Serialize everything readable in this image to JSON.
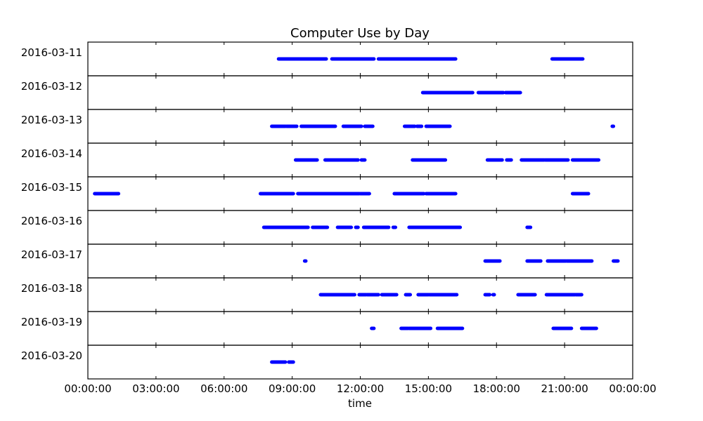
{
  "chart_data": {
    "type": "scatter",
    "title": "Computer Use by Day",
    "xlabel": "time",
    "x_range_hours": [
      0,
      24
    ],
    "x_ticks": [
      "00:00:00",
      "03:00:00",
      "06:00:00",
      "09:00:00",
      "12:00:00",
      "15:00:00",
      "18:00:00",
      "21:00:00",
      "00:00:00"
    ],
    "series_color": "#0000ff",
    "days": [
      {
        "label": "2016-03-11",
        "intervals": [
          [
            8.4,
            10.5
          ],
          [
            10.75,
            12.6
          ],
          [
            12.8,
            16.2
          ],
          [
            20.45,
            21.8
          ]
        ]
      },
      {
        "label": "2016-03-12",
        "intervals": [
          [
            14.75,
            16.95
          ],
          [
            17.2,
            18.3
          ],
          [
            18.4,
            19.05
          ]
        ]
      },
      {
        "label": "2016-03-13",
        "intervals": [
          [
            8.1,
            8.7
          ],
          [
            8.75,
            9.2
          ],
          [
            9.4,
            10.9
          ],
          [
            11.25,
            12.05
          ],
          [
            12.2,
            12.55
          ],
          [
            13.95,
            14.4
          ],
          [
            14.5,
            14.7
          ],
          [
            14.9,
            15.95
          ],
          [
            23.1,
            23.15
          ]
        ]
      },
      {
        "label": "2016-03-14",
        "intervals": [
          [
            9.15,
            10.1
          ],
          [
            10.45,
            11.9
          ],
          [
            12.05,
            12.2
          ],
          [
            14.3,
            15.75
          ],
          [
            17.6,
            18.25
          ],
          [
            18.45,
            18.65
          ],
          [
            19.1,
            20.1
          ],
          [
            20.15,
            21.15
          ],
          [
            21.35,
            22.5
          ]
        ]
      },
      {
        "label": "2016-03-15",
        "intervals": [
          [
            0.3,
            1.35
          ],
          [
            7.6,
            9.05
          ],
          [
            9.25,
            11.95
          ],
          [
            12.0,
            12.4
          ],
          [
            13.5,
            14.8
          ],
          [
            14.9,
            16.2
          ],
          [
            21.35,
            22.05
          ]
        ]
      },
      {
        "label": "2016-03-16",
        "intervals": [
          [
            7.75,
            9.0
          ],
          [
            9.0,
            9.7
          ],
          [
            9.9,
            10.55
          ],
          [
            11.0,
            11.6
          ],
          [
            11.8,
            11.9
          ],
          [
            12.15,
            13.25
          ],
          [
            13.45,
            13.55
          ],
          [
            14.15,
            16.4
          ],
          [
            19.35,
            19.5
          ]
        ]
      },
      {
        "label": "2016-03-17",
        "intervals": [
          [
            9.55,
            9.6
          ],
          [
            17.5,
            18.15
          ],
          [
            19.35,
            19.95
          ],
          [
            20.25,
            21.05
          ],
          [
            21.1,
            22.2
          ],
          [
            23.15,
            23.35
          ]
        ]
      },
      {
        "label": "2016-03-18",
        "intervals": [
          [
            10.25,
            11.75
          ],
          [
            11.95,
            12.25
          ],
          [
            12.3,
            12.8
          ],
          [
            12.95,
            13.6
          ],
          [
            14.0,
            14.2
          ],
          [
            14.55,
            15.0
          ],
          [
            15.05,
            16.25
          ],
          [
            17.5,
            17.7
          ],
          [
            17.85,
            17.9
          ],
          [
            18.95,
            19.7
          ],
          [
            20.2,
            21.45
          ],
          [
            21.5,
            21.75
          ]
        ]
      },
      {
        "label": "2016-03-19",
        "intervals": [
          [
            12.5,
            12.6
          ],
          [
            13.8,
            14.1
          ],
          [
            14.15,
            15.1
          ],
          [
            15.4,
            16.5
          ],
          [
            20.5,
            21.3
          ],
          [
            21.75,
            22.4
          ]
        ]
      },
      {
        "label": "2016-03-20",
        "intervals": [
          [
            8.1,
            8.7
          ],
          [
            8.85,
            9.05
          ]
        ]
      }
    ]
  }
}
